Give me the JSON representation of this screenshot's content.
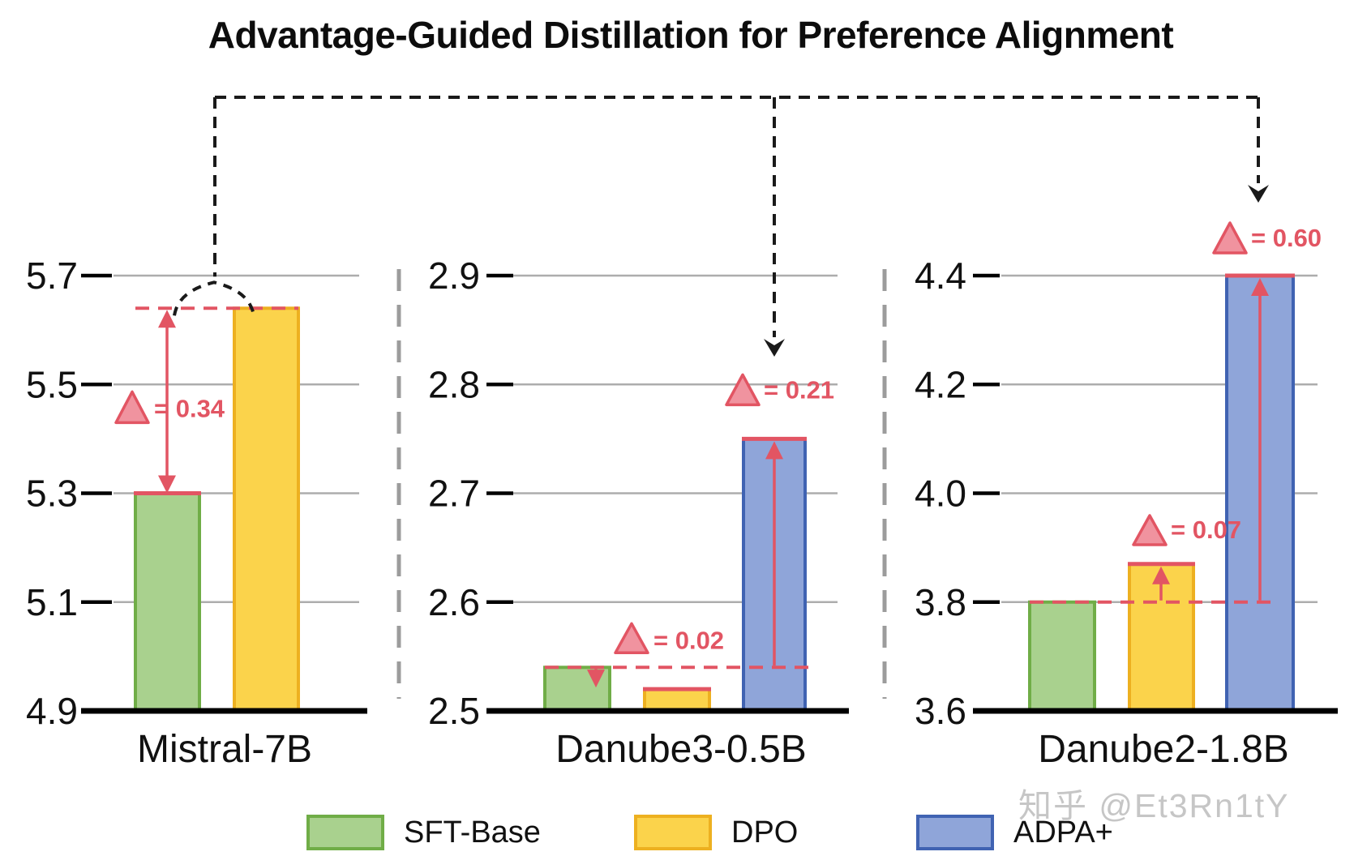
{
  "title": "Advantage-Guided Distillation for Preference Alignment",
  "watermark": "知乎 @Et3Rn1tY",
  "colors": {
    "sft_fill": "#a9d18e",
    "sft_border": "#70ad47",
    "dpo_fill": "#fbd34b",
    "dpo_border": "#edb020",
    "adpa_fill": "#8fa5d9",
    "adpa_border": "#4063b2",
    "delta_red": "#e25563",
    "delta_triangle_fill": "#f0939f",
    "gridline": "#adadad",
    "axis": "#000000",
    "connector_black": "#1a1a1a",
    "separator_gray": "#9c9c9c"
  },
  "legend": {
    "items": [
      {
        "label": "SFT-Base",
        "series": "sft"
      },
      {
        "label": "DPO",
        "series": "dpo"
      },
      {
        "label": "ADPA+",
        "series": "adpa"
      }
    ]
  },
  "chart_data": [
    {
      "type": "bar",
      "panel_label": "Mistral-7B",
      "ylim": [
        4.9,
        5.7
      ],
      "yticks": [
        "4.9",
        "5.1",
        "5.3",
        "5.5",
        "5.7"
      ],
      "series": [
        {
          "name": "SFT-Base",
          "value": 5.3
        },
        {
          "name": "DPO",
          "value": 5.64
        },
        {
          "name": "ADPA+",
          "value": null
        }
      ],
      "annotations": [
        {
          "kind": "delta",
          "from": "SFT-Base",
          "to": "DPO",
          "value": 0.34,
          "label": "= 0.34",
          "direction": "up"
        }
      ]
    },
    {
      "type": "bar",
      "panel_label": "Danube3-0.5B",
      "ylim": [
        2.5,
        2.9
      ],
      "yticks": [
        "2.5",
        "2.6",
        "2.7",
        "2.8",
        "2.9"
      ],
      "series": [
        {
          "name": "SFT-Base",
          "value": 2.54
        },
        {
          "name": "DPO",
          "value": 2.52
        },
        {
          "name": "ADPA+",
          "value": 2.75
        }
      ],
      "annotations": [
        {
          "kind": "delta",
          "from": "SFT-Base",
          "to": "DPO",
          "value": 0.02,
          "label": "= 0.02",
          "direction": "down"
        },
        {
          "kind": "delta",
          "from": "SFT-Base",
          "to": "ADPA+",
          "value": 0.21,
          "label": "= 0.21",
          "direction": "up"
        }
      ]
    },
    {
      "type": "bar",
      "panel_label": "Danube2-1.8B",
      "ylim": [
        3.6,
        4.4
      ],
      "yticks": [
        "3.6",
        "3.8",
        "4.0",
        "4.2",
        "4.4"
      ],
      "series": [
        {
          "name": "SFT-Base",
          "value": 3.8
        },
        {
          "name": "DPO",
          "value": 3.87
        },
        {
          "name": "ADPA+",
          "value": 4.4
        }
      ],
      "annotations": [
        {
          "kind": "delta",
          "from": "SFT-Base",
          "to": "DPO",
          "value": 0.07,
          "label": "= 0.07",
          "direction": "up"
        },
        {
          "kind": "delta",
          "from": "SFT-Base",
          "to": "ADPA+",
          "value": 0.6,
          "label": "= 0.60",
          "direction": "up"
        }
      ]
    }
  ]
}
